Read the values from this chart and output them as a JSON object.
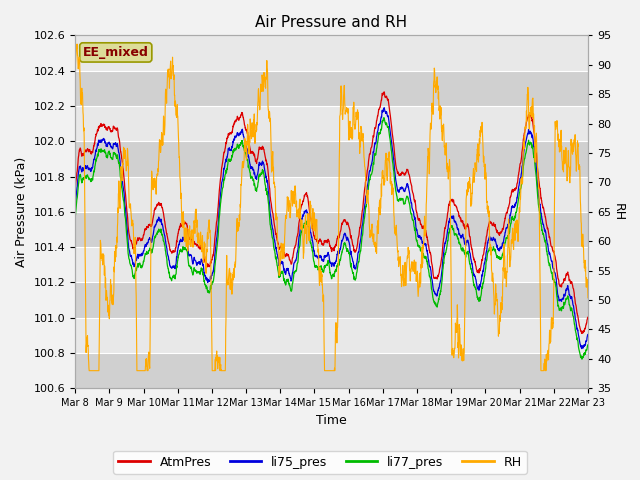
{
  "title": "Air Pressure and RH",
  "xlabel": "Time",
  "ylabel_left": "Air Pressure (kPa)",
  "ylabel_right": "RH",
  "annotation": "EE_mixed",
  "ylim_left": [
    100.6,
    102.6
  ],
  "ylim_right": [
    35,
    95
  ],
  "yticks_left": [
    100.6,
    100.8,
    101.0,
    101.2,
    101.4,
    101.6,
    101.8,
    102.0,
    102.2,
    102.4,
    102.6
  ],
  "yticks_right": [
    35,
    40,
    45,
    50,
    55,
    60,
    65,
    70,
    75,
    80,
    85,
    90,
    95
  ],
  "xtick_labels": [
    "Mar 8",
    "Mar 9",
    "Mar 10",
    "Mar 11",
    "Mar 12",
    "Mar 13",
    "Mar 14",
    "Mar 15",
    "Mar 16",
    "Mar 17",
    "Mar 18",
    "Mar 19",
    "Mar 20",
    "Mar 21",
    "Mar 22",
    "Mar 23"
  ],
  "colors": {
    "AtmPres": "#dd0000",
    "li75_pres": "#0000dd",
    "li77_pres": "#00bb00",
    "RH": "#ffaa00",
    "band_light": "#e8e8e8",
    "band_dark": "#d0d0d0",
    "grid_line": "#ffffff"
  },
  "legend_labels": [
    "AtmPres",
    "li75_pres",
    "li77_pres",
    "RH"
  ],
  "annotation_box_facecolor": "#dddd99",
  "annotation_box_edgecolor": "#999900",
  "annotation_text_color": "#880000",
  "fig_facecolor": "#f2f2f2",
  "title_fontsize": 11,
  "axis_fontsize": 9,
  "tick_fontsize": 8,
  "legend_fontsize": 9
}
